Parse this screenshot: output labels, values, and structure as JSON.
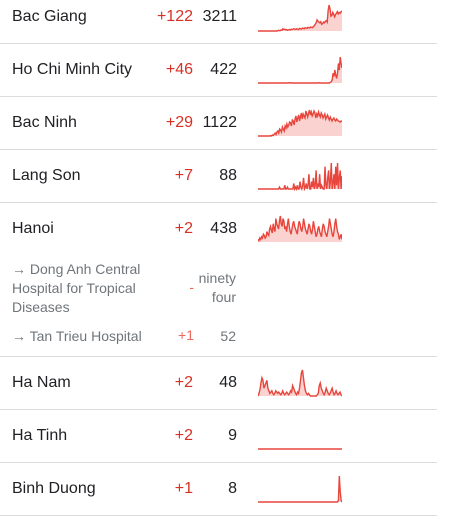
{
  "colors": {
    "increase": "#d93025",
    "spark_line": "#e8453c",
    "spark_fill": "#fad2cf",
    "divider": "#dadce0",
    "muted_text": "#70757a"
  },
  "rows": [
    {
      "place": "Bac Giang",
      "change": "+122",
      "total": "3211",
      "trend": [
        0,
        0,
        0,
        0,
        0,
        0,
        0,
        0,
        0,
        0,
        0,
        0,
        0,
        0,
        0,
        0,
        0,
        0,
        0,
        0,
        0,
        0,
        2,
        1,
        1,
        3,
        2,
        6,
        4,
        5,
        3,
        4,
        2,
        3,
        4,
        3,
        5,
        4,
        5,
        6,
        5,
        4,
        6,
        5,
        4,
        7,
        6,
        5,
        8,
        7,
        6,
        9,
        8,
        7,
        10,
        9,
        8,
        11,
        10,
        9,
        12,
        14,
        18,
        22,
        30,
        26,
        24,
        22,
        25,
        18,
        20,
        24,
        22,
        26,
        28,
        24,
        55,
        70,
        60,
        40,
        42,
        50,
        45,
        38,
        44,
        48,
        52,
        46,
        50,
        48,
        52,
        54
      ]
    },
    {
      "place": "Ho Chi Minh City",
      "change": "+46",
      "total": "422",
      "trend": [
        0,
        0,
        0,
        0,
        0,
        0,
        0,
        0,
        0,
        0,
        0,
        0,
        0,
        0,
        0,
        0,
        0,
        0,
        0,
        0,
        0,
        0,
        0,
        0,
        0,
        0,
        0,
        0,
        0,
        0,
        0,
        0,
        0,
        0,
        1,
        0,
        0,
        1,
        0,
        0,
        0,
        0,
        0,
        0,
        0,
        0,
        0,
        0,
        0,
        0,
        0,
        0,
        0,
        0,
        0,
        0,
        0,
        0,
        0,
        0,
        0,
        0,
        0,
        0,
        0,
        0,
        0,
        0,
        1,
        0,
        0,
        0,
        0,
        0,
        0,
        0,
        0,
        0,
        0,
        0,
        0,
        2,
        4,
        10,
        30,
        20,
        40,
        24,
        14,
        30,
        60,
        40,
        80,
        60,
        46
      ]
    },
    {
      "place": "Bac Ninh",
      "change": "+29",
      "total": "1122",
      "trend": [
        0,
        0,
        0,
        0,
        0,
        0,
        0,
        0,
        0,
        0,
        0,
        0,
        0,
        0,
        1,
        0,
        2,
        1,
        4,
        6,
        3,
        8,
        10,
        6,
        14,
        12,
        8,
        18,
        14,
        10,
        20,
        16,
        24,
        18,
        22,
        28,
        26,
        20,
        32,
        30,
        22,
        34,
        40,
        28,
        36,
        42,
        30,
        38,
        46,
        34,
        44,
        40,
        36,
        50,
        44,
        38,
        46,
        52,
        42,
        48,
        40,
        44,
        50,
        46,
        36,
        44,
        40,
        48,
        42,
        38,
        46,
        42,
        36,
        40,
        44,
        34,
        38,
        42,
        36,
        32,
        38,
        34,
        30,
        34,
        36,
        32,
        30,
        34,
        32,
        30,
        29,
        28,
        30,
        29
      ]
    },
    {
      "place": "Lang Son",
      "change": "+7",
      "total": "88",
      "trend": [
        0,
        0,
        0,
        0,
        0,
        0,
        0,
        0,
        0,
        0,
        0,
        0,
        0,
        0,
        0,
        0,
        0,
        0,
        0,
        0,
        0,
        0,
        0,
        0,
        1,
        0,
        0,
        0,
        0,
        0,
        2,
        0,
        0,
        1,
        0,
        0,
        0,
        0,
        0,
        0,
        3,
        0,
        1,
        0,
        2,
        0,
        0,
        4,
        1,
        0,
        2,
        6,
        0,
        1,
        3,
        0,
        2,
        8,
        0,
        0,
        4,
        1,
        6,
        0,
        2,
        10,
        0,
        3,
        1,
        8,
        0,
        2,
        1,
        0,
        0,
        12,
        2,
        0,
        6,
        10,
        0,
        4,
        14,
        0,
        3,
        8,
        0,
        12,
        2,
        14,
        0,
        6,
        10,
        0,
        7
      ]
    },
    {
      "place": "Hanoi",
      "change": "+2",
      "total": "438",
      "trend": [
        2,
        1,
        3,
        2,
        4,
        3,
        6,
        5,
        3,
        4,
        8,
        6,
        5,
        10,
        12,
        9,
        7,
        14,
        10,
        8,
        18,
        14,
        12,
        10,
        16,
        20,
        14,
        12,
        18,
        16,
        10,
        12,
        8,
        14,
        18,
        12,
        8,
        6,
        10,
        14,
        16,
        12,
        10,
        8,
        6,
        12,
        16,
        14,
        10,
        8,
        12,
        18,
        14,
        10,
        8,
        6,
        10,
        14,
        12,
        8,
        6,
        10,
        16,
        12,
        8,
        4,
        6,
        10,
        12,
        8,
        6,
        4,
        10,
        14,
        12,
        8,
        6,
        4,
        8,
        12,
        18,
        14,
        10,
        6,
        4,
        8,
        14,
        18,
        12,
        8,
        6,
        2,
        4,
        6,
        2
      ]
    },
    {
      "place": "Ha Nam",
      "change": "+2",
      "total": "48",
      "trend": [
        0,
        2,
        5,
        10,
        14,
        12,
        6,
        8,
        10,
        12,
        6,
        4,
        2,
        3,
        4,
        2,
        1,
        2,
        4,
        3,
        2,
        3,
        2,
        1,
        2,
        4,
        2,
        1,
        2,
        3,
        2,
        1,
        2,
        4,
        3,
        8,
        6,
        4,
        2,
        1,
        3,
        2,
        6,
        12,
        18,
        20,
        14,
        8,
        4,
        2,
        1,
        2,
        1,
        0,
        0,
        0,
        0,
        0,
        0,
        0,
        1,
        2,
        8,
        10,
        6,
        4,
        2,
        1,
        3,
        6,
        4,
        2,
        1,
        2,
        4,
        6,
        3,
        1,
        2,
        4,
        2,
        1,
        2,
        3,
        1,
        0
      ]
    },
    {
      "place": "Ha Tinh",
      "change": "+2",
      "total": "9",
      "trend": [
        0,
        0,
        0,
        0,
        0,
        0,
        0,
        0,
        0,
        0,
        0,
        0,
        0,
        0,
        0,
        0,
        0,
        0,
        0,
        0,
        0,
        0,
        0,
        0,
        0,
        0,
        0,
        0,
        0,
        0,
        0,
        0,
        0,
        0,
        0,
        0,
        0,
        0,
        0,
        0,
        0,
        0,
        0,
        0,
        0,
        0,
        0,
        0,
        0,
        0,
        0,
        0,
        0,
        0,
        0,
        0,
        0,
        0,
        0,
        0,
        0,
        0,
        0,
        0,
        0,
        0,
        0,
        0,
        0,
        0,
        0,
        0,
        0,
        0,
        0,
        0,
        0,
        0,
        0,
        0,
        0,
        0,
        0,
        0,
        0,
        0,
        0,
        0,
        0,
        0,
        0,
        0,
        0,
        0,
        0
      ]
    },
    {
      "place": "Binh Duong",
      "change": "+1",
      "total": "8",
      "trend": [
        0,
        0,
        0,
        0,
        0,
        0,
        0,
        0,
        0,
        0,
        0,
        0,
        0,
        0,
        0,
        0,
        0,
        0,
        0,
        0,
        0,
        0,
        0,
        0,
        0,
        0,
        0,
        0,
        0,
        0,
        0,
        0,
        0,
        0,
        0,
        0,
        0,
        0,
        0,
        0,
        0,
        0,
        0,
        0,
        0,
        0,
        0,
        0,
        0,
        0,
        0,
        0,
        0,
        0,
        0,
        0,
        0,
        0,
        0,
        0,
        0,
        0,
        0,
        0,
        0,
        0,
        0,
        0,
        0,
        0,
        0,
        0,
        0,
        0,
        0,
        0,
        0,
        0,
        0,
        0,
        0,
        0,
        0,
        0,
        0,
        0,
        0,
        0,
        0,
        0,
        2,
        30,
        12,
        2,
        0
      ]
    }
  ],
  "hanoi_subrows": [
    {
      "place": "→ Dong Anh Central\nHospital for Tropical\nDiseases",
      "change": "-",
      "total": "ninety\nfour"
    },
    {
      "place": "→ Tan Trieu Hospital",
      "change": "+1",
      "total": "52"
    }
  ]
}
